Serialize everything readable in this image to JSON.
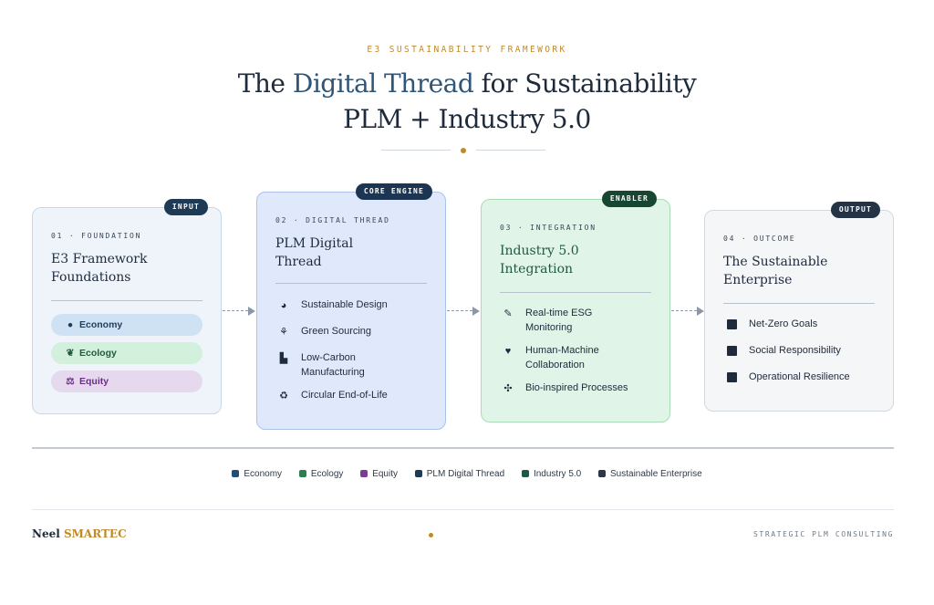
{
  "header": {
    "eyebrow": "E3 SUSTAINABILITY FRAMEWORK",
    "title_pre": "The ",
    "title_highlight": "Digital Thread",
    "title_post": " for Sustainability",
    "subtitle": "PLM + Industry 5.0"
  },
  "cards": [
    {
      "badge": "INPUT",
      "stage": "01 · FOUNDATION",
      "title_line1": "E3 Framework",
      "title_line2": "Foundations",
      "pills": [
        {
          "label": "Economy",
          "icon": "money-bag-icon",
          "glyph": "●"
        },
        {
          "label": "Ecology",
          "icon": "leaf-icon",
          "glyph": "❦"
        },
        {
          "label": "Equity",
          "icon": "scales-icon",
          "glyph": "⚖"
        }
      ]
    },
    {
      "badge": "CORE ENGINE",
      "stage": "02 · DIGITAL THREAD",
      "title_line1": "PLM Digital",
      "title_line2": "Thread",
      "items": [
        {
          "line1": "Sustainable Design",
          "line2": "",
          "icon": "palette-icon",
          "glyph": "◕"
        },
        {
          "line1": "Green Sourcing",
          "line2": "",
          "icon": "seedling-icon",
          "glyph": "⚘"
        },
        {
          "line1": "Low-Carbon",
          "line2": "Manufacturing",
          "icon": "factory-icon",
          "glyph": "▙"
        },
        {
          "line1": "Circular End-of-Life",
          "line2": "",
          "icon": "recycle-icon",
          "glyph": "♻"
        }
      ]
    },
    {
      "badge": "ENABLER",
      "stage": "03 · INTEGRATION",
      "title_line1": "Industry 5.0",
      "title_line2": "Integration",
      "items": [
        {
          "line1": "Real-time ESG",
          "line2": "Monitoring",
          "icon": "robot-arm-icon",
          "glyph": "✎"
        },
        {
          "line1": "Human-Machine",
          "line2": "Collaboration",
          "icon": "heart-icon",
          "glyph": "♥"
        },
        {
          "line1": "Bio-inspired Processes",
          "line2": "",
          "icon": "dna-icon",
          "glyph": "✣"
        }
      ]
    },
    {
      "badge": "OUTPUT",
      "stage": "04 · OUTCOME",
      "title_line1": "The Sustainable",
      "title_line2": "Enterprise",
      "items": [
        {
          "line1": "Net-Zero Goals",
          "line2": "",
          "icon": "square-icon"
        },
        {
          "line1": "Social Responsibility",
          "line2": "",
          "icon": "square-icon"
        },
        {
          "line1": "Operational Resilience",
          "line2": "",
          "icon": "square-icon"
        }
      ]
    }
  ],
  "legend": [
    {
      "label": "Economy",
      "color": "#1f4e79"
    },
    {
      "label": "Ecology",
      "color": "#2e7d4f"
    },
    {
      "label": "Equity",
      "color": "#7b3a96"
    },
    {
      "label": "PLM Digital Thread",
      "color": "#1e3a55"
    },
    {
      "label": "Industry 5.0",
      "color": "#1c5a45"
    },
    {
      "label": "Sustainable Enterprise",
      "color": "#2a3748"
    }
  ],
  "footer": {
    "brand_a": "Neel",
    "brand_b": "SMARTEC",
    "tagline": "STRATEGIC PLM CONSULTING"
  },
  "colors": {
    "accent_gold": "#c08a2c",
    "navy": "#1e2b3c",
    "thread_blue": "#2f5577"
  }
}
